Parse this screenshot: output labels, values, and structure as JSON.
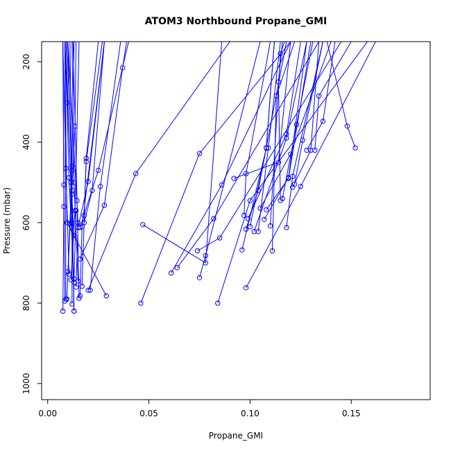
{
  "chart_data": {
    "type": "line",
    "title": "ATOM3 Northbound Propane_GMI",
    "xlabel": "Propane_GMI",
    "ylabel": "Pressure (mbar)",
    "xlim": [
      -0.003,
      0.189
    ],
    "ylim": [
      1040,
      150
    ],
    "y_axis_inverted": true,
    "grid": false,
    "legend": "none",
    "marker": "open-circle",
    "colors": {
      "series": "#0000ff",
      "axis": "#000000",
      "background": "#ffffff"
    },
    "x_ticks": [
      {
        "value": 0.0,
        "label": "0.00"
      },
      {
        "value": 0.05,
        "label": "0.05"
      },
      {
        "value": 0.1,
        "label": "0.10"
      },
      {
        "value": 0.15,
        "label": "0.15"
      }
    ],
    "y_ticks": [
      {
        "value": 200,
        "label": "200"
      },
      {
        "value": 400,
        "label": "400"
      },
      {
        "value": 600,
        "label": "600"
      },
      {
        "value": 800,
        "label": "800"
      },
      {
        "value": 1000,
        "label": "1000"
      }
    ],
    "series": [
      {
        "x": [
          0.029,
          0.0095,
          0.0085
        ],
        "y": [
          782,
          600,
          150
        ]
      },
      {
        "x": [
          0.0075,
          0.008,
          0.0075
        ],
        "y": [
          820,
          560,
          150
        ]
      },
      {
        "x": [
          0.013,
          0.012,
          0.009
        ],
        "y": [
          820,
          600,
          150
        ]
      },
      {
        "x": [
          0.013,
          0.012,
          0.011
        ],
        "y": [
          820,
          520,
          150
        ]
      },
      {
        "x": [
          0.012,
          0.012,
          0.0095
        ],
        "y": [
          802,
          470,
          150
        ]
      },
      {
        "x": [
          0.014,
          0.015,
          0.01
        ],
        "y": [
          760,
          600,
          150
        ]
      },
      {
        "x": [
          0.013,
          0.0105,
          0.0095,
          0.0085
        ],
        "y": [
          748,
          488,
          302,
          150
        ]
      },
      {
        "x": [
          0.015,
          0.013,
          0.012
        ],
        "y": [
          745,
          500,
          150
        ]
      },
      {
        "x": [
          0.0085,
          0.008,
          0.0075
        ],
        "y": [
          795,
          506,
          150
        ]
      },
      {
        "x": [
          0.009,
          0.0085
        ],
        "y": [
          790,
          150
        ]
      },
      {
        "x": [
          0.016,
          0.017,
          0.028
        ],
        "y": [
          782,
          610,
          150
        ]
      },
      {
        "x": [
          0.017,
          0.019,
          0.025
        ],
        "y": [
          758,
          440,
          150
        ]
      },
      {
        "x": [
          0.021,
          0.026,
          0.036
        ],
        "y": [
          768,
          510,
          150
        ]
      },
      {
        "x": [
          0.018,
          0.022,
          0.028
        ],
        "y": [
          600,
          520,
          150
        ]
      },
      {
        "x": [
          0.01,
          0.0135,
          0.014
        ],
        "y": [
          722,
          360,
          150
        ]
      },
      {
        "x": [
          0.016,
          0.025,
          0.04
        ],
        "y": [
          612,
          470,
          150
        ]
      },
      {
        "x": [
          0.0095,
          0.012,
          0.013
        ],
        "y": [
          790,
          460,
          150
        ]
      },
      {
        "x": [
          0.018,
          0.019,
          0.027
        ],
        "y": [
          582,
          448,
          150
        ]
      },
      {
        "x": [
          0.015,
          0.02,
          0.028
        ],
        "y": [
          612,
          498,
          150
        ]
      },
      {
        "x": [
          0.013,
          0.014
        ],
        "y": [
          740,
          570
        ]
      },
      {
        "x": [
          0.011,
          0.012,
          0.01
        ],
        "y": [
          602,
          530,
          150
        ]
      },
      {
        "x": [
          0.016,
          0.028,
          0.037,
          0.039
        ],
        "y": [
          690,
          557,
          215,
          150
        ]
      },
      {
        "x": [
          0.0105,
          0.009,
          0.0075
        ],
        "y": [
          728,
          465,
          150
        ]
      },
      {
        "x": [
          0.0155,
          0.0145,
          0.0125
        ],
        "y": [
          788,
          545,
          150
        ]
      },
      {
        "x": [
          0.0115,
          0.0135,
          0.0155
        ],
        "y": [
          742,
          570,
          150
        ]
      },
      {
        "x": [
          0.013,
          0.0115,
          0.0085
        ],
        "y": [
          632,
          500,
          150
        ]
      },
      {
        "x": [
          0.02,
          0.0435,
          0.09
        ],
        "y": [
          768,
          478,
          150
        ]
      },
      {
        "x": [
          0.046,
          0.075,
          0.12
        ],
        "y": [
          800,
          428,
          150
        ]
      },
      {
        "x": [
          0.047,
          0.078,
          0.086
        ],
        "y": [
          605,
          700,
          150
        ]
      },
      {
        "x": [
          0.061,
          0.086,
          0.12
        ],
        "y": [
          725,
          506,
          150
        ]
      },
      {
        "x": [
          0.064,
          0.082,
          0.134
        ],
        "y": [
          712,
          590,
          150
        ]
      },
      {
        "x": [
          0.075,
          0.078,
          0.105
        ],
        "y": [
          737,
          682,
          150
        ]
      },
      {
        "x": [
          0.074,
          0.085,
          0.145
        ],
        "y": [
          670,
          638,
          150
        ]
      },
      {
        "x": [
          0.084,
          0.1,
          0.158
        ],
        "y": [
          800,
          545,
          150
        ]
      },
      {
        "x": [
          0.098,
          0.125,
          0.162
        ],
        "y": [
          762,
          510,
          150
        ]
      },
      {
        "x": [
          0.092,
          0.114,
          0.12
        ],
        "y": [
          490,
          450,
          150
        ]
      },
      {
        "x": [
          0.096,
          0.108,
          0.112
        ],
        "y": [
          668,
          415,
          150
        ]
      },
      {
        "x": [
          0.097,
          0.098,
          0.11
        ],
        "y": [
          582,
          478,
          150
        ]
      },
      {
        "x": [
          0.098,
          0.104,
          0.118
        ],
        "y": [
          616,
          520,
          150
        ]
      },
      {
        "x": [
          0.099,
          0.118,
          0.125
        ],
        "y": [
          590,
          380,
          150
        ]
      },
      {
        "x": [
          0.102,
          0.118,
          0.128
        ],
        "y": [
          622,
          390,
          150
        ]
      },
      {
        "x": [
          0.104,
          0.109,
          0.115
        ],
        "y": [
          622,
          414,
          150
        ]
      },
      {
        "x": [
          0.108,
          0.119,
          0.13
        ],
        "y": [
          568,
          490,
          150
        ]
      },
      {
        "x": [
          0.111,
          0.113,
          0.122
        ],
        "y": [
          670,
          285,
          150
        ]
      },
      {
        "x": [
          0.115,
          0.114,
          0.116
        ],
        "y": [
          545,
          250,
          150
        ]
      },
      {
        "x": [
          0.116,
          0.123,
          0.131
        ],
        "y": [
          540,
          356,
          150
        ]
      },
      {
        "x": [
          0.121,
          0.13,
          0.134
        ],
        "y": [
          512,
          420,
          150
        ]
      },
      {
        "x": [
          0.122,
          0.126,
          0.136
        ],
        "y": [
          504,
          395,
          150
        ]
      },
      {
        "x": [
          0.128,
          0.136,
          0.142
        ],
        "y": [
          420,
          348,
          150
        ]
      },
      {
        "x": [
          0.152,
          0.148,
          0.138
        ],
        "y": [
          414,
          360,
          150
        ]
      },
      {
        "x": [
          0.132,
          0.134,
          0.15
        ],
        "y": [
          420,
          285,
          150
        ]
      },
      {
        "x": [
          0.11,
          0.115,
          0.117
        ],
        "y": [
          608,
          180,
          150
        ]
      },
      {
        "x": [
          0.118,
          0.121,
          0.136
        ],
        "y": [
          612,
          485,
          150
        ]
      },
      {
        "x": [
          0.105,
          0.12,
          0.14
        ],
        "y": [
          564,
          430,
          150
        ]
      },
      {
        "x": [
          0.107,
          0.119,
          0.128
        ],
        "y": [
          592,
          488,
          150
        ]
      },
      {
        "x": [
          0.1,
          0.108,
          0.112
        ],
        "y": [
          610,
          414,
          150
        ]
      }
    ]
  }
}
